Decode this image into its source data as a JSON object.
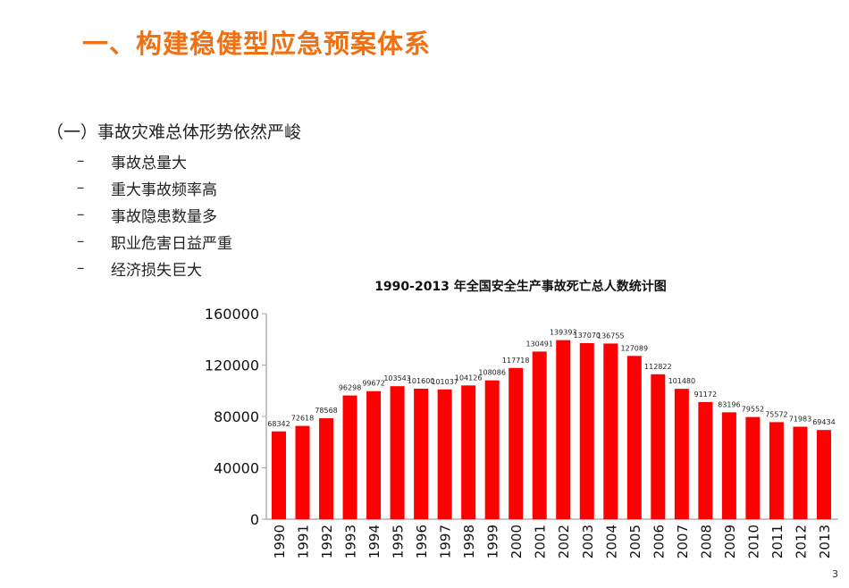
{
  "slide": {
    "title": "一、构建稳健型应急预案体系",
    "subheading": "（一）事故灾难总体形势依然严峻",
    "bullets": [
      {
        "marker": "–",
        "text": "事故总量大"
      },
      {
        "marker": "–",
        "text": "重大事故频率高"
      },
      {
        "marker": "–",
        "text": "事故隐患数量多"
      },
      {
        "marker": "–",
        "text": "职业危害日益严重"
      },
      {
        "marker": "–",
        "text": "经济损失巨大"
      }
    ],
    "page_number": "3"
  },
  "colors": {
    "title": "#f07014",
    "bar": "#ff0000",
    "axis": "#b0b0b0"
  },
  "chart_data": {
    "type": "bar",
    "title": "1990-2013 年全国安全生产事故死亡总人数统计图",
    "xlabel": "",
    "ylabel": "",
    "ylim": [
      0,
      160000
    ],
    "yticks": [
      0,
      40000,
      80000,
      120000,
      160000
    ],
    "grid": false,
    "legend": "none",
    "categories": [
      "1990",
      "1991",
      "1992",
      "1993",
      "1994",
      "1995",
      "1996",
      "1997",
      "1998",
      "1999",
      "2000",
      "2001",
      "2002",
      "2003",
      "2004",
      "2005",
      "2006",
      "2007",
      "2008",
      "2009",
      "2010",
      "2011",
      "2012",
      "2013"
    ],
    "values": [
      68342,
      72618,
      78568,
      96298,
      99672,
      103543,
      101600,
      101037,
      104126,
      108086,
      117718,
      130491,
      139393,
      137070,
      136755,
      127089,
      112822,
      101480,
      91172,
      83196,
      79552,
      75572,
      71983,
      69434
    ]
  }
}
